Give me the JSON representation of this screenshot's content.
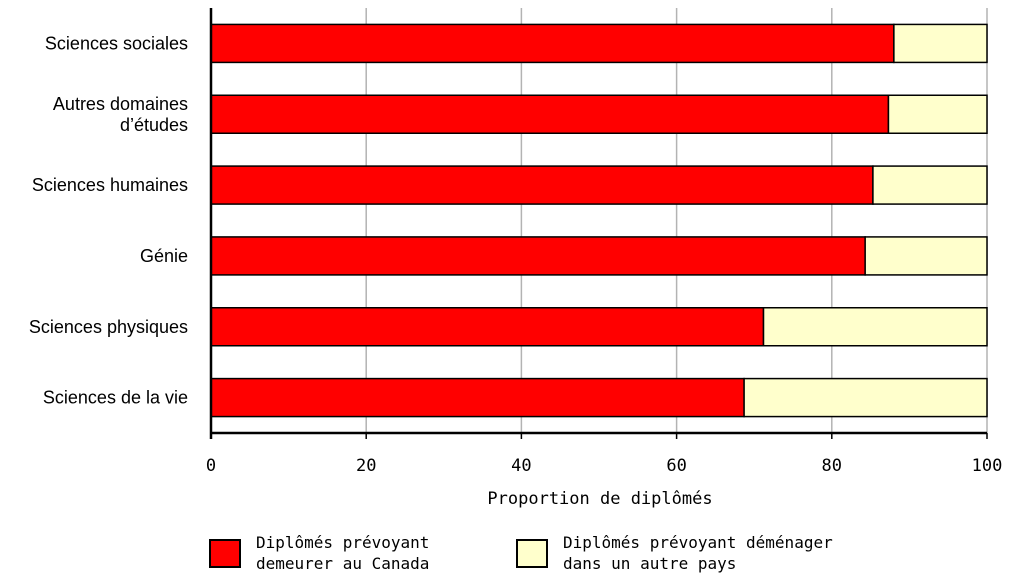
{
  "chart_data": {
    "type": "bar",
    "orientation": "horizontal",
    "stacked": true,
    "categories": [
      [
        "Sciences sociales"
      ],
      [
        "Autres domaines",
        "d’études"
      ],
      [
        "Sciences humaines"
      ],
      [
        "Génie"
      ],
      [
        "Sciences physiques"
      ],
      [
        "Sciences de la vie"
      ]
    ],
    "series": [
      {
        "name": [
          "Diplômés prévoyant",
          "demeurer au Canada"
        ],
        "color": "#ff0000",
        "values": [
          88,
          87.3,
          85.3,
          84.3,
          71.2,
          68.7
        ]
      },
      {
        "name": [
          "Diplômés prévoyant déménager",
          "dans un autre pays"
        ],
        "color": "#ffffcc",
        "values": [
          12,
          12.7,
          14.7,
          15.7,
          28.8,
          31.3
        ]
      }
    ],
    "xlabel": "Proportion de diplômés",
    "xlim": [
      0,
      100
    ],
    "xticks": [
      0,
      20,
      40,
      60,
      80,
      100
    ],
    "grid": true,
    "legend_position": "bottom"
  }
}
